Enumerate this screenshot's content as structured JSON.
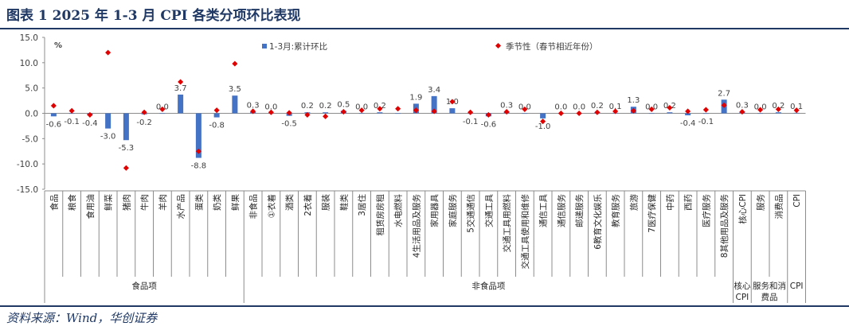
{
  "title": "图表 1   2025 年 1-3 月 CPI 各类分项环比表现",
  "source": "资料来源：Wind，华创证券",
  "chart_data": {
    "type": "bar",
    "unit": "%",
    "ylim": [
      -15,
      15
    ],
    "yticks": [
      "15.0",
      "10.0",
      "5.0",
      "0.0",
      "-5.0",
      "-10.0",
      "-15.0"
    ],
    "categories": [
      "食品",
      "粮食",
      "食用油",
      "鲜菜",
      "猪肉",
      "牛肉",
      "羊肉",
      "水产品",
      "蛋类",
      "奶类",
      "鲜果",
      "非食品",
      "①衣着",
      "酒类",
      "2衣着",
      "服装",
      "鞋类",
      "3居住",
      "租赁房房租",
      "水电燃料",
      "4生活用品及服务",
      "家用器具",
      "家庭服务",
      "5交通通信",
      "交通工具",
      "交通工具用燃料",
      "交通工具使用和维修",
      "通信工具",
      "通信服务",
      "邮递服务",
      "6教育文化娱乐",
      "教育服务",
      "旅游",
      "7医疗保健",
      "中药",
      "西药",
      "医疗服务",
      "8其他用品及服务",
      "核心CPI",
      "服务",
      "消费品",
      "CPI"
    ],
    "series": [
      {
        "name": "1-3月:累计环比",
        "color": "#4472c4",
        "values": [
          -0.6,
          -0.1,
          -0.4,
          -3.0,
          -5.3,
          -0.2,
          0.0,
          3.7,
          -8.8,
          -0.8,
          3.5,
          0.3,
          0.0,
          -0.5,
          0.2,
          0.2,
          0.5,
          0.0,
          0.2,
          0.0,
          1.9,
          3.4,
          1.0,
          -0.1,
          -0.6,
          0.3,
          0.0,
          -1.0,
          0.0,
          0.0,
          0.2,
          0.1,
          1.3,
          0.0,
          0.2,
          -0.4,
          -0.1,
          2.7,
          0.3,
          0.0,
          0.2,
          0.1
        ],
        "labels": [
          "-0.6",
          "-0.1",
          "-0.4",
          "-3.0",
          "-5.3",
          "-0.2",
          "0.0",
          "3.7",
          "-8.8",
          "-0.8",
          "3.5",
          "0.3",
          "0.0",
          "-0.5",
          "0.2",
          "0.2",
          "0.5",
          "0.0",
          "0.2",
          "",
          "1.9",
          "3.4",
          "1.0",
          "-0.1",
          "-0.6",
          "0.3",
          "0.0",
          "-1.0",
          "0.0",
          "0.0",
          "0.2",
          "0.1",
          "1.3",
          "0.0",
          "0.2",
          "-0.4",
          "-0.1",
          "2.7",
          "0.3",
          "0.0",
          "0.2",
          "0.1"
        ]
      },
      {
        "name": "季节性（春节相近年份）",
        "color": "#e00000",
        "values": [
          1.5,
          0.5,
          -0.3,
          12.0,
          -10.8,
          0.2,
          0.8,
          6.2,
          -7.5,
          0.6,
          9.8,
          0.4,
          0.2,
          0.1,
          -0.3,
          -0.6,
          0.3,
          0.6,
          0.9,
          0.9,
          0.6,
          0.4,
          2.3,
          0.2,
          -0.3,
          0.3,
          0.8,
          -1.6,
          0.0,
          0.0,
          0.2,
          0.4,
          0.5,
          0.8,
          1.1,
          0.4,
          0.7,
          1.6,
          0.3,
          0.7,
          0.8,
          0.6
        ]
      }
    ],
    "groups": [
      {
        "label": "食品项",
        "start": 0,
        "end": 10
      },
      {
        "label": "非食品项",
        "start": 11,
        "end": 37
      },
      {
        "label": "核心CPI",
        "start": 38,
        "end": 38
      },
      {
        "label": "服务和消费品",
        "start": 39,
        "end": 40
      },
      {
        "label": "CPI",
        "start": 41,
        "end": 41
      }
    ],
    "grid": false,
    "legend": "top"
  }
}
